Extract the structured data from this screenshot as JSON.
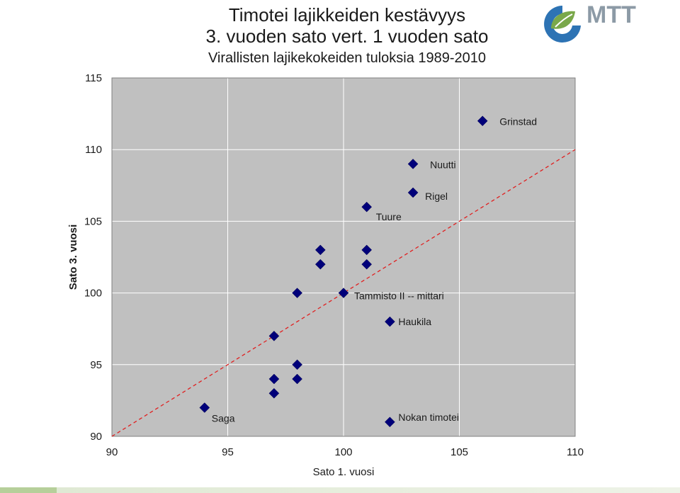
{
  "header": {
    "title_line1": "Timotei lajikkeiden kestävyys",
    "title_line2": "3. vuoden sato vert. 1 vuoden sato",
    "subtitle": "Virallisten lajikekokeiden tuloksia 1989-2010"
  },
  "logo": {
    "text": "MTT",
    "icon": "mtt-leaf-logo",
    "colors": {
      "green": "#7aa84a",
      "blue": "#2d73b4",
      "grey": "#8c9aa6"
    }
  },
  "colors": {
    "plot_bg": "#c0c0c0",
    "marker": "#00007a",
    "trend": "#e02020",
    "gridline": "#ffffff",
    "footer_green": "#b6cf9a"
  },
  "chart_data": {
    "type": "scatter",
    "title": "Timotei lajikkeiden kestävyys",
    "xlabel": "Sato 1. vuosi",
    "ylabel": "Sato 3. vuosi",
    "xlim": [
      90,
      110
    ],
    "ylim": [
      90,
      115
    ],
    "xticks": [
      90,
      95,
      100,
      105,
      110
    ],
    "yticks": [
      90,
      95,
      100,
      105,
      110,
      115
    ],
    "grid": "vertical",
    "reference_line": {
      "from": [
        90,
        90
      ],
      "to": [
        110,
        110
      ],
      "style": "dashed"
    },
    "points": [
      {
        "x": 106,
        "y": 112,
        "label": "Grinstad"
      },
      {
        "x": 103,
        "y": 109,
        "label": "Nuutti"
      },
      {
        "x": 103,
        "y": 107,
        "label": "Rigel"
      },
      {
        "x": 101,
        "y": 106,
        "label": "Tuure"
      },
      {
        "x": 99,
        "y": 103,
        "label": ""
      },
      {
        "x": 101,
        "y": 103,
        "label": ""
      },
      {
        "x": 99,
        "y": 102,
        "label": ""
      },
      {
        "x": 101,
        "y": 102,
        "label": ""
      },
      {
        "x": 98,
        "y": 100,
        "label": ""
      },
      {
        "x": 100,
        "y": 100,
        "label": "Tammisto II -- mittari"
      },
      {
        "x": 102,
        "y": 98,
        "label": "Haukila"
      },
      {
        "x": 97,
        "y": 97,
        "label": ""
      },
      {
        "x": 98,
        "y": 95,
        "label": ""
      },
      {
        "x": 97,
        "y": 94,
        "label": ""
      },
      {
        "x": 98,
        "y": 94,
        "label": ""
      },
      {
        "x": 97,
        "y": 93,
        "label": ""
      },
      {
        "x": 94,
        "y": 92,
        "label": "Saga"
      },
      {
        "x": 102,
        "y": 91,
        "label": "Nokan timotei"
      }
    ]
  }
}
